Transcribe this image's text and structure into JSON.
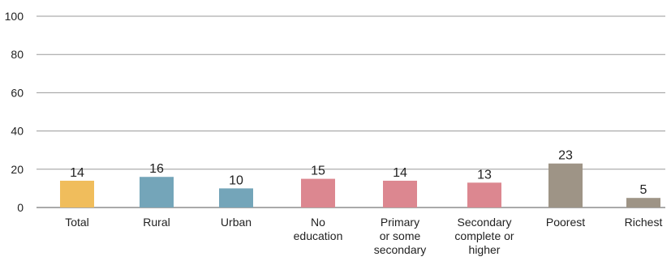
{
  "chart_data": {
    "type": "bar",
    "title": "",
    "xlabel": "",
    "ylabel": "",
    "ylim": [
      0,
      100
    ],
    "yticks": [
      0,
      20,
      40,
      60,
      80,
      100
    ],
    "grid": true,
    "categories": [
      [
        "Total"
      ],
      [
        "Rural"
      ],
      [
        "Urban"
      ],
      [
        "No",
        "education"
      ],
      [
        "Primary",
        "or some",
        "secondary"
      ],
      [
        "Secondary",
        "complete or",
        "higher"
      ],
      [
        "Poorest"
      ],
      [
        "Richest"
      ]
    ],
    "values": [
      14,
      16,
      10,
      15,
      14,
      13,
      23,
      5
    ],
    "colors": [
      "#f0bd5c",
      "#74a5b9",
      "#74a5b9",
      "#dc8790",
      "#dc8790",
      "#dc8790",
      "#9e9486",
      "#9e9486"
    ]
  }
}
